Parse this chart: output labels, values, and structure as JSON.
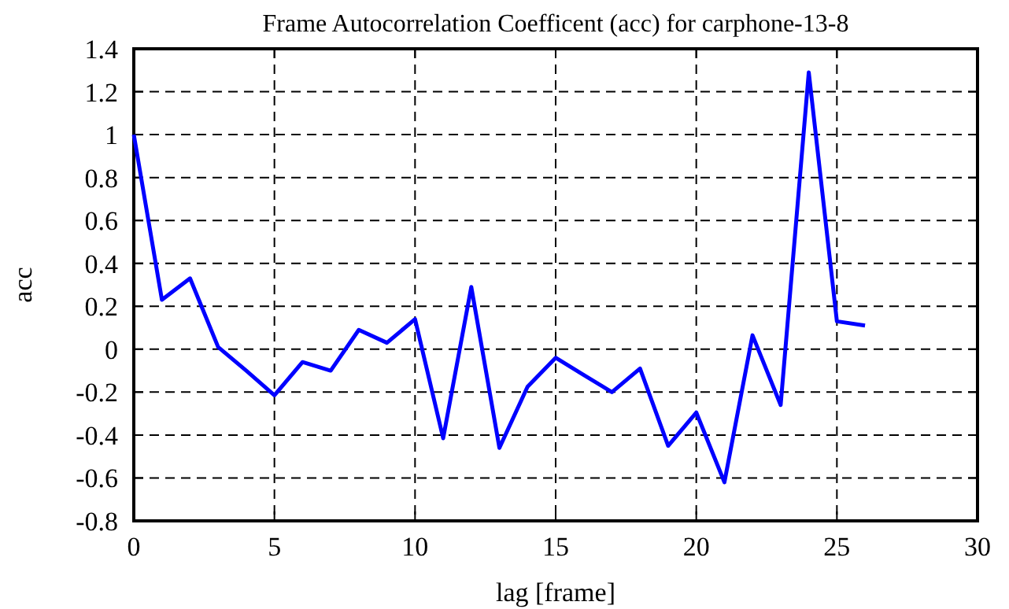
{
  "chart_data": {
    "type": "line",
    "title": "Frame Autocorrelation Coefficent (acc) for carphone-13-8",
    "xlabel": "lag [frame]",
    "ylabel": "acc",
    "x": [
      0,
      1,
      2,
      3,
      4,
      5,
      6,
      7,
      8,
      9,
      10,
      11,
      12,
      13,
      14,
      15,
      16,
      17,
      18,
      19,
      20,
      21,
      22,
      23,
      24,
      25,
      26
    ],
    "series": [
      {
        "color": "#0000ff",
        "values": [
          1.0,
          0.23,
          0.33,
          0.01,
          -0.1,
          -0.215,
          -0.06,
          -0.1,
          0.09,
          0.03,
          0.14,
          -0.415,
          0.29,
          -0.46,
          -0.175,
          -0.04,
          -0.12,
          -0.2,
          -0.09,
          -0.45,
          -0.295,
          -0.62,
          0.065,
          -0.26,
          1.29,
          0.13,
          0.11
        ]
      }
    ],
    "xlim": [
      0,
      30
    ],
    "xticks": [
      0,
      5,
      10,
      15,
      20,
      25,
      30
    ],
    "ylim": [
      -0.8,
      1.4
    ],
    "yticks": [
      -0.8,
      -0.6,
      -0.4,
      -0.2,
      0,
      0.2,
      0.4,
      0.6,
      0.8,
      1,
      1.2,
      1.4
    ],
    "grid": true,
    "marker": "none",
    "line_style": "solid"
  }
}
